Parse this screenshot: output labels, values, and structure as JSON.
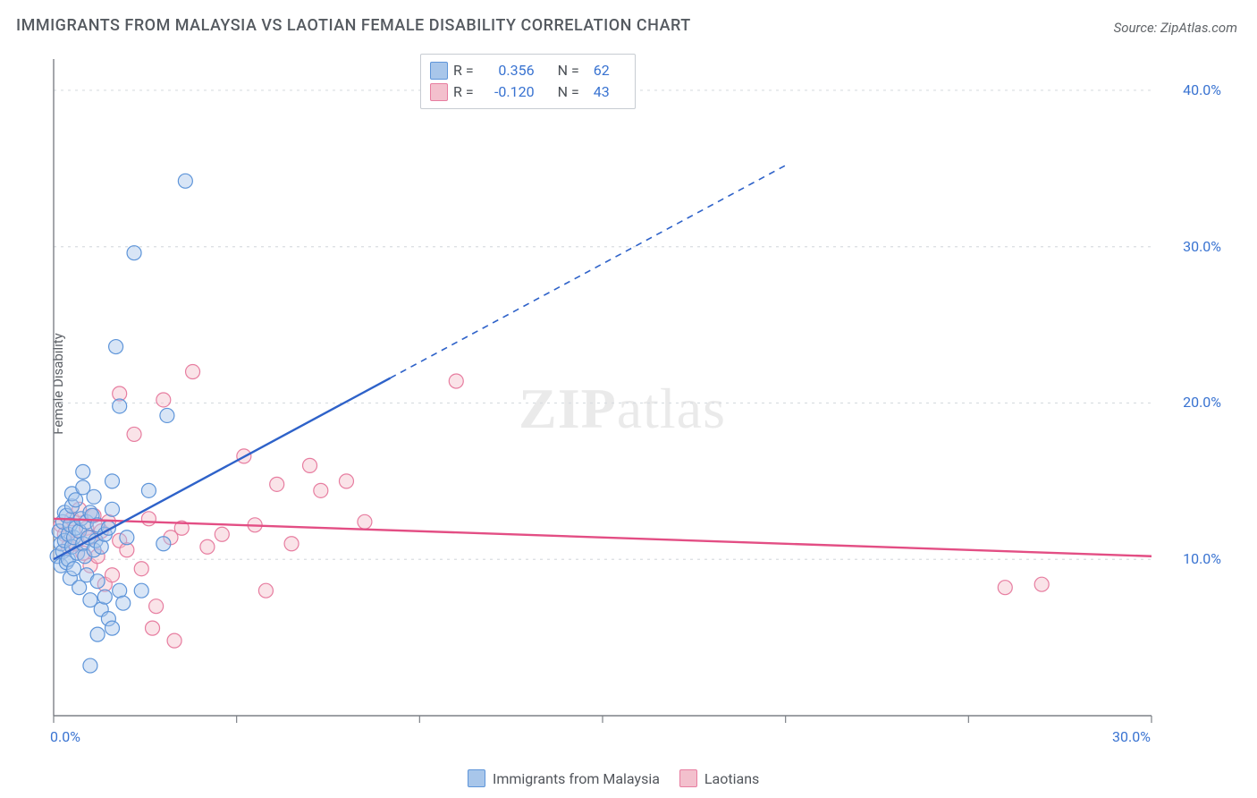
{
  "title": "IMMIGRANTS FROM MALAYSIA VS LAOTIAN FEMALE DISABILITY CORRELATION CHART",
  "source": "Source: ZipAtlas.com",
  "watermark": {
    "bold": "ZIP",
    "rest": "atlas"
  },
  "y_axis_title": "Female Disability",
  "colors": {
    "series1_fill": "#a8c6ea",
    "series1_stroke": "#5e95d9",
    "series1_line": "#2e62c9",
    "series2_fill": "#f3c0cd",
    "series2_stroke": "#e77da0",
    "series2_line": "#e34e84",
    "axis": "#7d8187",
    "grid": "#d9dde1",
    "tick_text": "#3973d1",
    "title_text": "#555a60",
    "label_text": "#5c6066"
  },
  "chart": {
    "type": "scatter-with-regression",
    "x_domain": [
      0,
      30
    ],
    "y_domain": [
      0,
      42
    ],
    "x_ticks": [
      0,
      5,
      10,
      15,
      20,
      25,
      30
    ],
    "x_tick_labels": {
      "0": "0.0%",
      "30": "30.0%"
    },
    "y_ticks": [
      10,
      20,
      30,
      40
    ],
    "y_tick_labels": {
      "10": "10.0%",
      "20": "20.0%",
      "30": "30.0%",
      "40": "40.0%"
    },
    "y_tick_side": "right",
    "marker_radius": 8,
    "marker_fill_opacity": 0.45,
    "marker_stroke_width": 1.2,
    "line_width_solid": 2.4,
    "line_width_dash": 1.6,
    "dash_pattern": "7 6",
    "grid_dash": "3 5"
  },
  "legend_top": {
    "rows": [
      {
        "swatch": "series1",
        "r_label": "R =",
        "r": "0.356",
        "n_label": "N =",
        "n": "62"
      },
      {
        "swatch": "series2",
        "r_label": "R =",
        "r": "-0.120",
        "n_label": "N =",
        "n": "43"
      }
    ]
  },
  "legend_bottom": {
    "items": [
      {
        "swatch": "series1",
        "label": "Immigrants from Malaysia"
      },
      {
        "swatch": "series2",
        "label": "Laotians"
      }
    ]
  },
  "series": {
    "series1": {
      "name": "Immigrants from Malaysia",
      "points": [
        [
          0.1,
          10.2
        ],
        [
          0.15,
          11.8
        ],
        [
          0.2,
          11.0
        ],
        [
          0.2,
          9.6
        ],
        [
          0.25,
          12.4
        ],
        [
          0.25,
          10.5
        ],
        [
          0.3,
          13.0
        ],
        [
          0.3,
          11.2
        ],
        [
          0.35,
          9.8
        ],
        [
          0.35,
          12.8
        ],
        [
          0.4,
          10.0
        ],
        [
          0.4,
          11.6
        ],
        [
          0.45,
          12.2
        ],
        [
          0.45,
          8.8
        ],
        [
          0.5,
          10.8
        ],
        [
          0.5,
          13.4
        ],
        [
          0.5,
          14.2
        ],
        [
          0.55,
          11.4
        ],
        [
          0.55,
          9.4
        ],
        [
          0.6,
          12.0
        ],
        [
          0.6,
          13.8
        ],
        [
          0.65,
          10.4
        ],
        [
          0.7,
          11.8
        ],
        [
          0.7,
          8.2
        ],
        [
          0.75,
          12.6
        ],
        [
          0.8,
          11.0
        ],
        [
          0.8,
          14.6
        ],
        [
          0.85,
          10.2
        ],
        [
          0.9,
          12.4
        ],
        [
          0.9,
          9.0
        ],
        [
          0.95,
          11.4
        ],
        [
          1.0,
          13.0
        ],
        [
          1.0,
          7.4
        ],
        [
          1.05,
          12.8
        ],
        [
          1.1,
          10.6
        ],
        [
          1.1,
          14.0
        ],
        [
          1.15,
          11.2
        ],
        [
          1.2,
          8.6
        ],
        [
          1.2,
          12.2
        ],
        [
          1.3,
          10.8
        ],
        [
          1.3,
          6.8
        ],
        [
          1.4,
          11.6
        ],
        [
          1.4,
          7.6
        ],
        [
          1.5,
          12.0
        ],
        [
          1.5,
          6.2
        ],
        [
          1.6,
          5.6
        ],
        [
          1.6,
          13.2
        ],
        [
          1.7,
          23.6
        ],
        [
          1.8,
          19.8
        ],
        [
          1.8,
          8.0
        ],
        [
          1.9,
          7.2
        ],
        [
          2.0,
          11.4
        ],
        [
          2.2,
          29.6
        ],
        [
          2.4,
          8.0
        ],
        [
          2.6,
          14.4
        ],
        [
          3.0,
          11.0
        ],
        [
          3.1,
          19.2
        ],
        [
          3.6,
          34.2
        ],
        [
          1.0,
          3.2
        ],
        [
          1.2,
          5.2
        ],
        [
          0.8,
          15.6
        ],
        [
          1.6,
          15.0
        ]
      ],
      "regression": {
        "x1": 0,
        "y1": 10.0,
        "x2": 9.2,
        "y2": 21.6,
        "x2_ext": 20,
        "y2_ext": 35.2
      }
    },
    "series2": {
      "name": "Laotians",
      "points": [
        [
          0.2,
          12.2
        ],
        [
          0.3,
          11.6
        ],
        [
          0.4,
          10.8
        ],
        [
          0.5,
          12.6
        ],
        [
          0.6,
          11.0
        ],
        [
          0.7,
          13.2
        ],
        [
          0.8,
          10.4
        ],
        [
          0.9,
          12.0
        ],
        [
          1.0,
          11.4
        ],
        [
          1.0,
          9.6
        ],
        [
          1.1,
          12.8
        ],
        [
          1.2,
          10.2
        ],
        [
          1.3,
          11.8
        ],
        [
          1.4,
          8.4
        ],
        [
          1.5,
          12.4
        ],
        [
          1.6,
          9.0
        ],
        [
          1.8,
          11.2
        ],
        [
          1.8,
          20.6
        ],
        [
          2.0,
          10.6
        ],
        [
          2.2,
          18.0
        ],
        [
          2.4,
          9.4
        ],
        [
          2.6,
          12.6
        ],
        [
          2.7,
          5.6
        ],
        [
          2.8,
          7.0
        ],
        [
          3.0,
          20.2
        ],
        [
          3.2,
          11.4
        ],
        [
          3.3,
          4.8
        ],
        [
          3.5,
          12.0
        ],
        [
          3.8,
          22.0
        ],
        [
          4.2,
          10.8
        ],
        [
          4.6,
          11.6
        ],
        [
          5.2,
          16.6
        ],
        [
          5.5,
          12.2
        ],
        [
          5.8,
          8.0
        ],
        [
          6.1,
          14.8
        ],
        [
          6.5,
          11.0
        ],
        [
          7.0,
          16.0
        ],
        [
          7.3,
          14.4
        ],
        [
          8.0,
          15.0
        ],
        [
          8.5,
          12.4
        ],
        [
          11.0,
          21.4
        ],
        [
          26.0,
          8.2
        ],
        [
          27.0,
          8.4
        ]
      ],
      "regression": {
        "x1": 0,
        "y1": 12.6,
        "x2": 30,
        "y2": 10.2
      }
    }
  }
}
